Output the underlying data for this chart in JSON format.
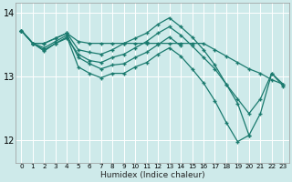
{
  "xlabel": "Humidex (Indice chaleur)",
  "bg_color": "#ceeaea",
  "grid_color": "#ffffff",
  "line_color": "#1a7a6e",
  "xlim": [
    -0.5,
    23.5
  ],
  "ylim": [
    11.65,
    14.15
  ],
  "yticks": [
    12,
    13,
    14
  ],
  "xticks": [
    0,
    1,
    2,
    3,
    4,
    5,
    6,
    7,
    8,
    9,
    10,
    11,
    12,
    13,
    14,
    15,
    16,
    17,
    18,
    19,
    20,
    21,
    22,
    23
  ],
  "series": [
    {
      "x": [
        0,
        1,
        2,
        3,
        4,
        5,
        6,
        7,
        8,
        9,
        10,
        11,
        12,
        13,
        14,
        15,
        16,
        17,
        18,
        19,
        20,
        21,
        22,
        23
      ],
      "y": [
        13.72,
        13.52,
        13.52,
        13.6,
        13.68,
        13.55,
        13.52,
        13.52,
        13.52,
        13.52,
        13.52,
        13.52,
        13.52,
        13.52,
        13.52,
        13.52,
        13.52,
        13.42,
        13.32,
        13.22,
        13.12,
        13.05,
        12.95,
        12.88
      ]
    },
    {
      "x": [
        0,
        1,
        2,
        3,
        4,
        5,
        6,
        7,
        8,
        9,
        10,
        11,
        12,
        13,
        14,
        15,
        16,
        17,
        18,
        19,
        20,
        21,
        22,
        23
      ],
      "y": [
        13.72,
        13.52,
        13.52,
        13.6,
        13.68,
        13.42,
        13.38,
        13.35,
        13.42,
        13.52,
        13.6,
        13.68,
        13.82,
        13.92,
        13.78,
        13.62,
        13.42,
        13.18,
        12.88,
        12.65,
        12.42,
        12.65,
        13.05,
        12.88
      ]
    },
    {
      "x": [
        0,
        1,
        2,
        3,
        4,
        5,
        6,
        7,
        8,
        9,
        10,
        11,
        12,
        13,
        14,
        15,
        16,
        17,
        18,
        19,
        20,
        21,
        22,
        23
      ],
      "y": [
        13.72,
        13.52,
        13.4,
        13.52,
        13.6,
        13.35,
        13.25,
        13.22,
        13.3,
        13.35,
        13.45,
        13.55,
        13.68,
        13.78,
        13.65,
        13.48,
        13.3,
        13.12,
        12.88,
        12.58,
        12.08,
        12.42,
        13.05,
        12.85
      ]
    },
    {
      "x": [
        0,
        1,
        2,
        3,
        4,
        5,
        6,
        7,
        8,
        9,
        10,
        11,
        12,
        13,
        14
      ],
      "y": [
        13.72,
        13.52,
        13.45,
        13.55,
        13.65,
        13.3,
        13.2,
        13.12,
        13.18,
        13.2,
        13.3,
        13.38,
        13.5,
        13.62,
        13.48
      ]
    },
    {
      "x": [
        0,
        1,
        2,
        3,
        4,
        5,
        6,
        7,
        8,
        9,
        10,
        11,
        12,
        13,
        14,
        15,
        16,
        17,
        18,
        19,
        20
      ],
      "y": [
        13.72,
        13.52,
        13.42,
        13.52,
        13.62,
        13.15,
        13.05,
        12.98,
        13.05,
        13.05,
        13.15,
        13.22,
        13.35,
        13.45,
        13.32,
        13.12,
        12.9,
        12.62,
        12.28,
        11.98,
        12.08
      ]
    }
  ]
}
